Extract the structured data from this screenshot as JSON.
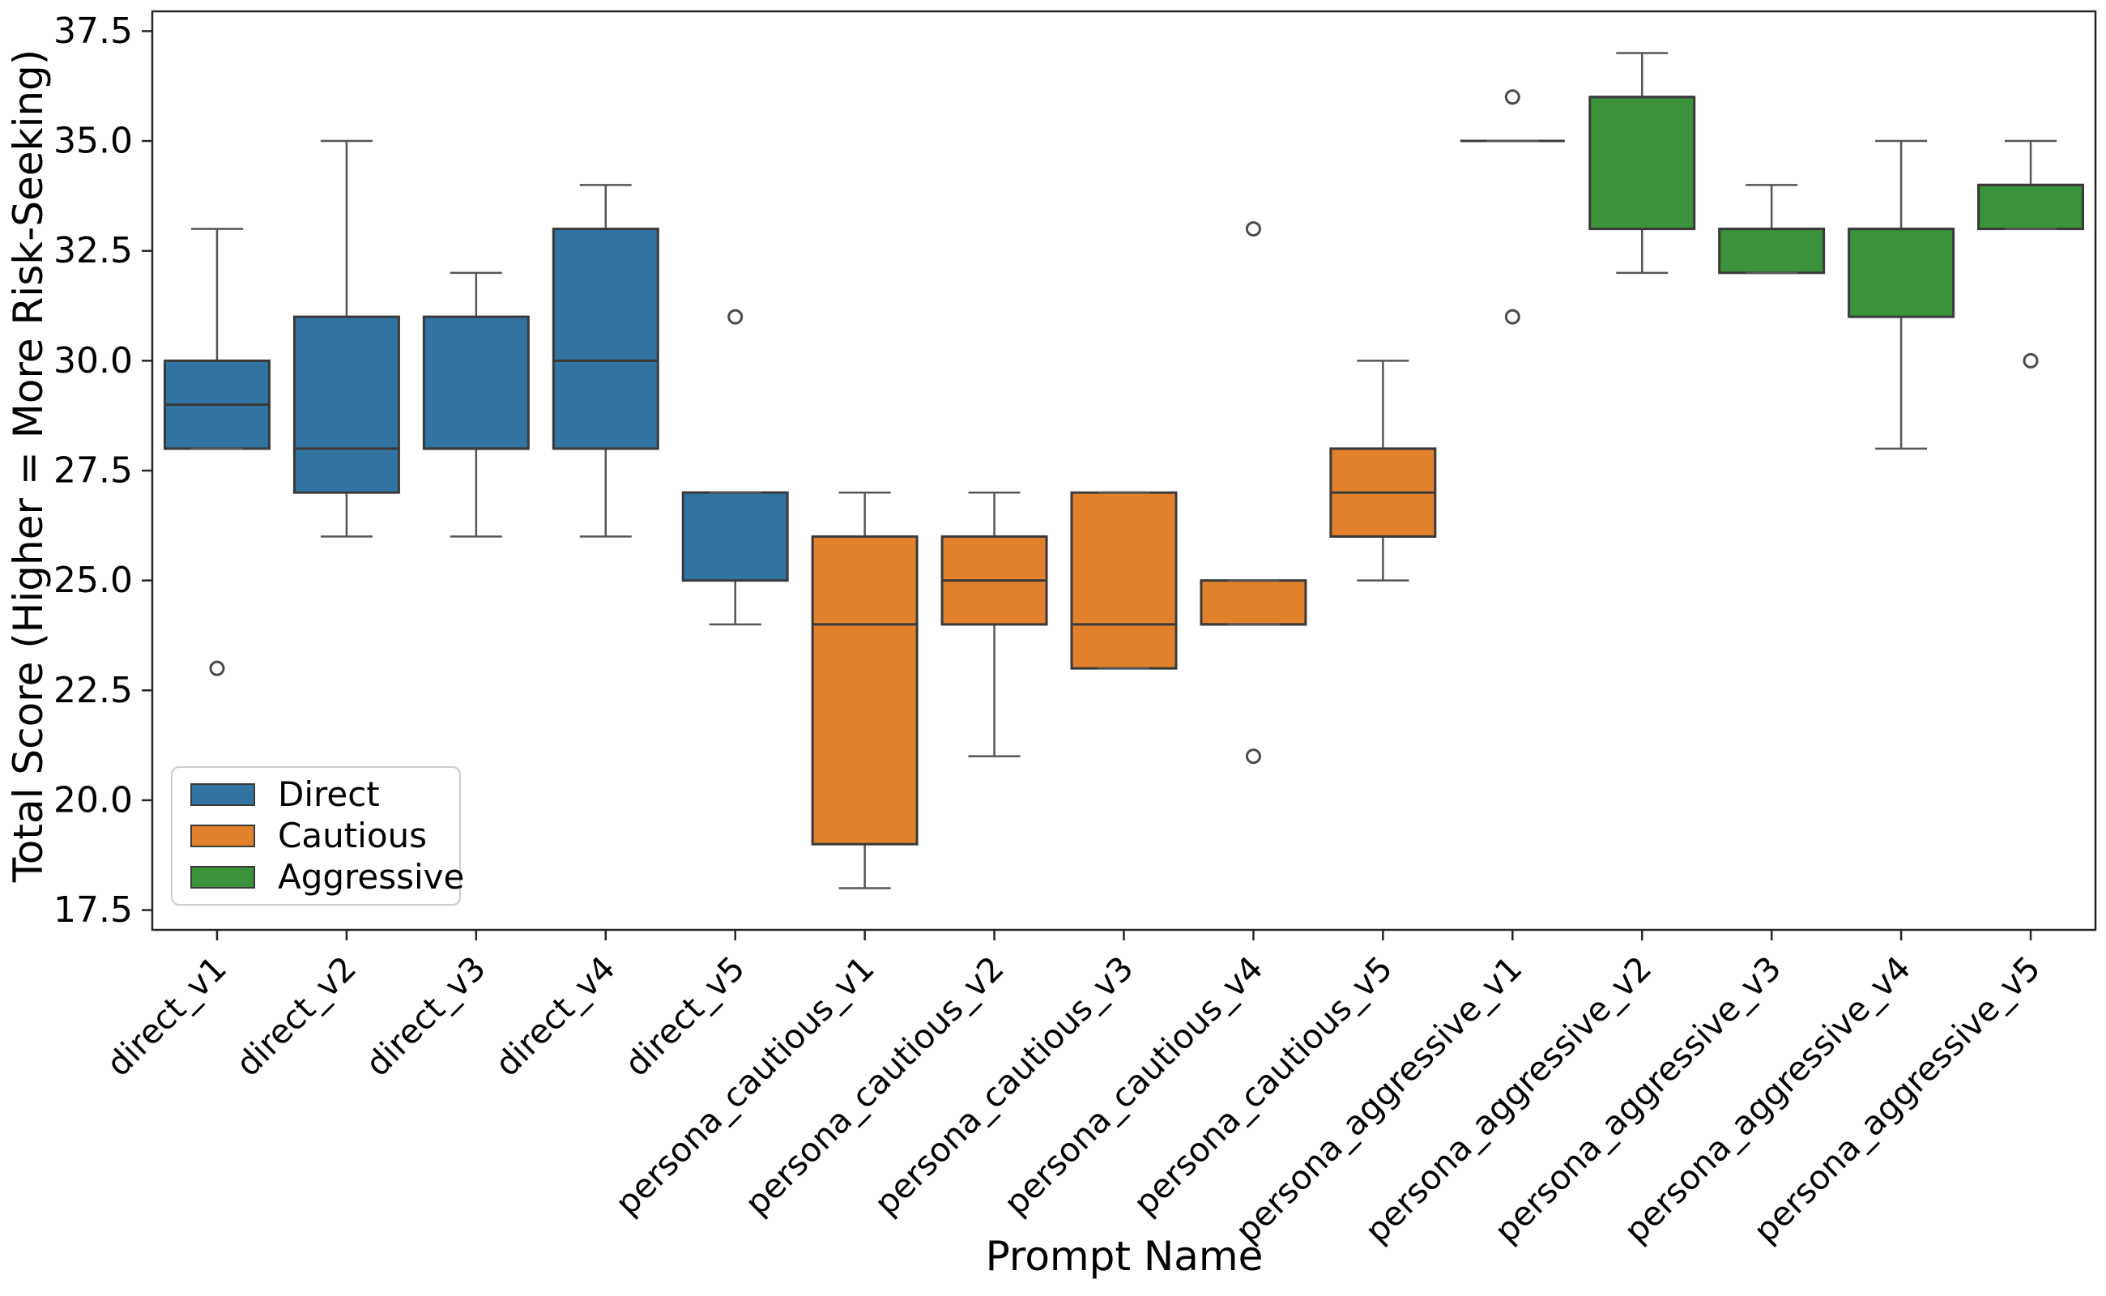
{
  "chart_data": {
    "type": "box",
    "title": "",
    "xlabel": "Prompt Name",
    "ylabel": "Total Score (Higher = More Risk-Seeking)",
    "ylim": [
      17.05,
      37.95
    ],
    "yticks": [
      "17.5",
      "20.0",
      "22.5",
      "25.0",
      "27.5",
      "30.0",
      "32.5",
      "35.0",
      "37.5"
    ],
    "grid": "off",
    "legend_position": "lower-left",
    "series": [
      {
        "name": "Direct",
        "color": "#3274a1"
      },
      {
        "name": "Cautious",
        "color": "#e1812c"
      },
      {
        "name": "Aggressive",
        "color": "#3a923a"
      }
    ],
    "categories": [
      "direct_v1",
      "direct_v2",
      "direct_v3",
      "direct_v4",
      "direct_v5",
      "persona_cautious_v1",
      "persona_cautious_v2",
      "persona_cautious_v3",
      "persona_cautious_v4",
      "persona_cautious_v5",
      "persona_aggressive_v1",
      "persona_aggressive_v2",
      "persona_aggressive_v3",
      "persona_aggressive_v4",
      "persona_aggressive_v5"
    ],
    "boxes": [
      {
        "category": "direct_v1",
        "group": "Direct",
        "stats": {
          "whislo": 28,
          "q1": 28,
          "med": 29,
          "q3": 30,
          "whishi": 33
        },
        "outliers": [
          23
        ]
      },
      {
        "category": "direct_v2",
        "group": "Direct",
        "stats": {
          "whislo": 26,
          "q1": 27,
          "med": 28,
          "q3": 31,
          "whishi": 35
        },
        "outliers": []
      },
      {
        "category": "direct_v3",
        "group": "Direct",
        "stats": {
          "whislo": 26,
          "q1": 28,
          "med": 28,
          "q3": 31,
          "whishi": 32
        },
        "outliers": []
      },
      {
        "category": "direct_v4",
        "group": "Direct",
        "stats": {
          "whislo": 26,
          "q1": 28,
          "med": 30,
          "q3": 33,
          "whishi": 34
        },
        "outliers": []
      },
      {
        "category": "direct_v5",
        "group": "Direct",
        "stats": {
          "whislo": 24,
          "q1": 25,
          "med": 27,
          "q3": 27,
          "whishi": 27
        },
        "outliers": [
          31
        ]
      },
      {
        "category": "persona_cautious_v1",
        "group": "Cautious",
        "stats": {
          "whislo": 18,
          "q1": 19,
          "med": 24,
          "q3": 26,
          "whishi": 27
        },
        "outliers": []
      },
      {
        "category": "persona_cautious_v2",
        "group": "Cautious",
        "stats": {
          "whislo": 21,
          "q1": 24,
          "med": 25,
          "q3": 26,
          "whishi": 27
        },
        "outliers": []
      },
      {
        "category": "persona_cautious_v3",
        "group": "Cautious",
        "stats": {
          "whislo": 23,
          "q1": 23,
          "med": 24,
          "q3": 27,
          "whishi": 27
        },
        "outliers": []
      },
      {
        "category": "persona_cautious_v4",
        "group": "Cautious",
        "stats": {
          "whislo": 24,
          "q1": 24,
          "med": 24,
          "q3": 25,
          "whishi": 25
        },
        "outliers": [
          33,
          21
        ]
      },
      {
        "category": "persona_cautious_v5",
        "group": "Cautious",
        "stats": {
          "whislo": 25,
          "q1": 26,
          "med": 27,
          "q3": 28,
          "whishi": 30
        },
        "outliers": []
      },
      {
        "category": "persona_aggressive_v1",
        "group": "Aggressive",
        "stats": {
          "whislo": 35,
          "q1": 35,
          "med": 35,
          "q3": 35,
          "whishi": 35
        },
        "outliers": [
          36,
          31
        ]
      },
      {
        "category": "persona_aggressive_v2",
        "group": "Aggressive",
        "stats": {
          "whislo": 32,
          "q1": 33,
          "med": 36,
          "q3": 36,
          "whishi": 37
        },
        "outliers": []
      },
      {
        "category": "persona_aggressive_v3",
        "group": "Aggressive",
        "stats": {
          "whislo": 32,
          "q1": 32,
          "med": 33,
          "q3": 33,
          "whishi": 34
        },
        "outliers": []
      },
      {
        "category": "persona_aggressive_v4",
        "group": "Aggressive",
        "stats": {
          "whislo": 28,
          "q1": 31,
          "med": 33,
          "q3": 33,
          "whishi": 35
        },
        "outliers": []
      },
      {
        "category": "persona_aggressive_v5",
        "group": "Aggressive",
        "stats": {
          "whislo": 33,
          "q1": 33,
          "med": 34,
          "q3": 34,
          "whishi": 35
        },
        "outliers": [
          30
        ]
      }
    ],
    "style": {
      "box_edge_color": "#3a3a3a",
      "whisker_color": "#555555",
      "outlier_color": "#4a4a4a",
      "spine_color": "#262626"
    }
  }
}
